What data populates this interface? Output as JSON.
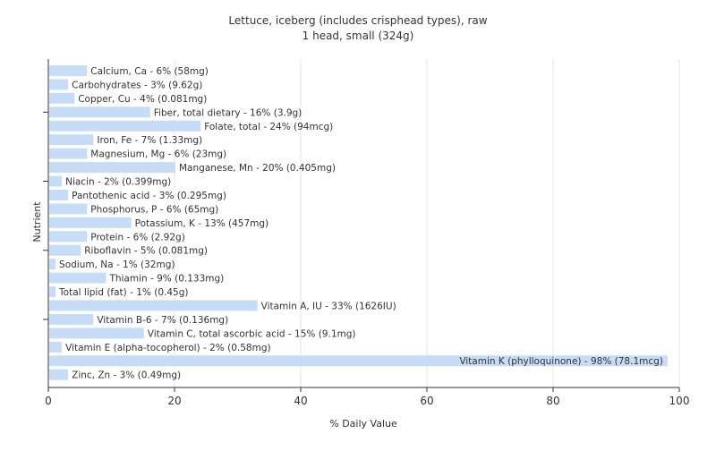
{
  "chart_data": {
    "type": "bar",
    "orientation": "horizontal",
    "title": "Lettuce, iceberg (includes crisphead types), raw",
    "subtitle": "1 head, small (324g)",
    "xlabel": "% Daily Value",
    "ylabel": "Nutrient",
    "xlim": [
      0,
      100
    ],
    "xticks": [
      "0",
      "20",
      "40",
      "60",
      "80",
      "100"
    ],
    "grid": true,
    "bar_color": "#c6dcf7",
    "grid_color": "#e6e6e6",
    "categories": [
      "Calcium, Ca",
      "Carbohydrates",
      "Copper, Cu",
      "Fiber, total dietary",
      "Folate, total",
      "Iron, Fe",
      "Magnesium, Mg",
      "Manganese, Mn",
      "Niacin",
      "Pantothenic acid",
      "Phosphorus, P",
      "Potassium, K",
      "Protein",
      "Riboflavin",
      "Sodium, Na",
      "Thiamin",
      "Total lipid (fat)",
      "Vitamin A, IU",
      "Vitamin B-6",
      "Vitamin C, total ascorbic acid",
      "Vitamin E (alpha-tocopherol)",
      "Vitamin K (phylloquinone)",
      "Zinc, Zn"
    ],
    "values": [
      6,
      3,
      4,
      16,
      24,
      7,
      6,
      20,
      2,
      3,
      6,
      13,
      6,
      5,
      1,
      9,
      1,
      33,
      7,
      15,
      2,
      98,
      3
    ],
    "labels": [
      "Calcium, Ca - 6% (58mg)",
      "Carbohydrates - 3% (9.62g)",
      "Copper, Cu - 4% (0.081mg)",
      "Fiber, total dietary - 16% (3.9g)",
      "Folate, total - 24% (94mcg)",
      "Iron, Fe - 7% (1.33mg)",
      "Magnesium, Mg - 6% (23mg)",
      "Manganese, Mn - 20% (0.405mg)",
      "Niacin - 2% (0.399mg)",
      "Pantothenic acid - 3% (0.295mg)",
      "Phosphorus, P - 6% (65mg)",
      "Potassium, K - 13% (457mg)",
      "Protein - 6% (2.92g)",
      "Riboflavin - 5% (0.081mg)",
      "Sodium, Na - 1% (32mg)",
      "Thiamin - 9% (0.133mg)",
      "Total lipid (fat) - 1% (0.45g)",
      "Vitamin A, IU - 33% (1626IU)",
      "Vitamin B-6 - 7% (0.136mg)",
      "Vitamin C, total ascorbic acid - 15% (9.1mg)",
      "Vitamin E (alpha-tocopherol) - 2% (0.58mg)",
      "Vitamin K (phylloquinone) - 98% (78.1mcg)",
      "Zinc, Zn - 3% (0.49mg)"
    ]
  }
}
